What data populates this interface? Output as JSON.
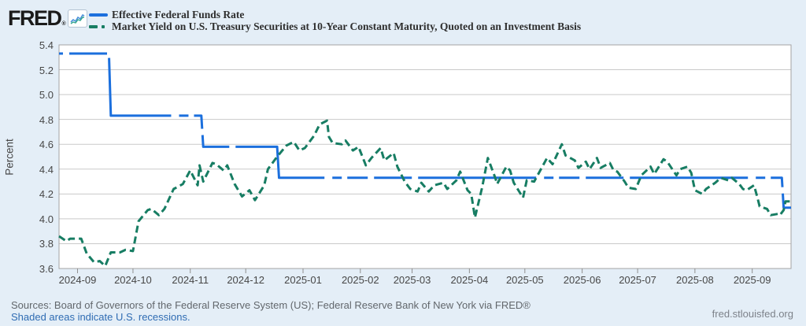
{
  "brand": {
    "logo_text": "FRED",
    "logo_reg": "®"
  },
  "legend": [
    {
      "label": "Effective Federal Funds Rate",
      "color": "#1b6fdd",
      "style": "solid"
    },
    {
      "label": "Market Yield on U.S. Treasury Securities at 10-Year Constant Maturity, Quoted on an Investment Basis",
      "color": "#177d63",
      "style": "dash-dot"
    }
  ],
  "footer": {
    "sources": "Sources: Board of Governors of the Federal Reserve System (US); Federal Reserve Bank of New York via FRED®",
    "recession_note": "Shaded areas indicate U.S. recessions.",
    "site": "fred.stlouisfed.org"
  },
  "chart_data": {
    "type": "line",
    "title": "",
    "xlabel": "",
    "ylabel": "Percent",
    "ylim": [
      3.6,
      5.4
    ],
    "yticks": [
      3.6,
      3.8,
      4.0,
      4.2,
      4.4,
      4.6,
      4.8,
      5.0,
      5.2,
      5.4
    ],
    "x_range": [
      "2024-08-22",
      "2025-09-22"
    ],
    "xticks": [
      "2024-09",
      "2024-10",
      "2024-11",
      "2024-12",
      "2025-01",
      "2025-02",
      "2025-03",
      "2025-04",
      "2025-05",
      "2025-06",
      "2025-07",
      "2025-08",
      "2025-09"
    ],
    "grid": "horizontal",
    "legend_position": "top",
    "series": [
      {
        "name": "Effective Federal Funds Rate",
        "color": "#1b6fdd",
        "style": "long-dash",
        "points": [
          [
            "2024-08-22",
            5.33
          ],
          [
            "2024-09-18",
            5.33
          ],
          [
            "2024-09-19",
            4.83
          ],
          [
            "2024-11-07",
            4.83
          ],
          [
            "2024-11-08",
            4.58
          ],
          [
            "2024-12-18",
            4.58
          ],
          [
            "2024-12-19",
            4.33
          ],
          [
            "2025-09-17",
            4.33
          ],
          [
            "2025-09-18",
            4.09
          ],
          [
            "2025-09-22",
            4.09
          ]
        ]
      },
      {
        "name": "Market Yield on U.S. Treasury Securities at 10-Year Constant Maturity, Quoted on an Investment Basis",
        "color": "#177d63",
        "style": "short-dash",
        "points": [
          [
            "2024-08-22",
            3.86
          ],
          [
            "2024-08-26",
            3.82
          ],
          [
            "2024-08-28",
            3.84
          ],
          [
            "2024-09-03",
            3.84
          ],
          [
            "2024-09-06",
            3.72
          ],
          [
            "2024-09-10",
            3.65
          ],
          [
            "2024-09-13",
            3.66
          ],
          [
            "2024-09-16",
            3.62
          ],
          [
            "2024-09-19",
            3.73
          ],
          [
            "2024-09-24",
            3.73
          ],
          [
            "2024-09-27",
            3.75
          ],
          [
            "2024-10-01",
            3.74
          ],
          [
            "2024-10-04",
            3.98
          ],
          [
            "2024-10-09",
            4.07
          ],
          [
            "2024-10-11",
            4.08
          ],
          [
            "2024-10-15",
            4.03
          ],
          [
            "2024-10-18",
            4.08
          ],
          [
            "2024-10-23",
            4.24
          ],
          [
            "2024-10-28",
            4.28
          ],
          [
            "2024-11-01",
            4.39
          ],
          [
            "2024-11-05",
            4.27
          ],
          [
            "2024-11-06",
            4.43
          ],
          [
            "2024-11-08",
            4.3
          ],
          [
            "2024-11-13",
            4.45
          ],
          [
            "2024-11-15",
            4.44
          ],
          [
            "2024-11-19",
            4.39
          ],
          [
            "2024-11-21",
            4.43
          ],
          [
            "2024-11-25",
            4.28
          ],
          [
            "2024-11-29",
            4.18
          ],
          [
            "2024-12-03",
            4.23
          ],
          [
            "2024-12-06",
            4.15
          ],
          [
            "2024-12-11",
            4.27
          ],
          [
            "2024-12-13",
            4.4
          ],
          [
            "2024-12-18",
            4.5
          ],
          [
            "2024-12-23",
            4.59
          ],
          [
            "2024-12-27",
            4.62
          ],
          [
            "2024-12-30",
            4.55
          ],
          [
            "2025-01-02",
            4.57
          ],
          [
            "2025-01-07",
            4.67
          ],
          [
            "2025-01-10",
            4.76
          ],
          [
            "2025-01-14",
            4.79
          ],
          [
            "2025-01-15",
            4.66
          ],
          [
            "2025-01-17",
            4.61
          ],
          [
            "2025-01-22",
            4.6
          ],
          [
            "2025-01-24",
            4.63
          ],
          [
            "2025-01-28",
            4.55
          ],
          [
            "2025-01-31",
            4.58
          ],
          [
            "2025-02-04",
            4.43
          ],
          [
            "2025-02-07",
            4.49
          ],
          [
            "2025-02-12",
            4.57
          ],
          [
            "2025-02-14",
            4.47
          ],
          [
            "2025-02-19",
            4.53
          ],
          [
            "2025-02-21",
            4.42
          ],
          [
            "2025-02-25",
            4.3
          ],
          [
            "2025-02-28",
            4.24
          ],
          [
            "2025-03-04",
            4.22
          ],
          [
            "2025-03-06",
            4.29
          ],
          [
            "2025-03-10",
            4.22
          ],
          [
            "2025-03-13",
            4.27
          ],
          [
            "2025-03-18",
            4.29
          ],
          [
            "2025-03-20",
            4.24
          ],
          [
            "2025-03-25",
            4.31
          ],
          [
            "2025-03-27",
            4.38
          ],
          [
            "2025-03-31",
            4.23
          ],
          [
            "2025-04-02",
            4.2
          ],
          [
            "2025-04-04",
            4.01
          ],
          [
            "2025-04-08",
            4.26
          ],
          [
            "2025-04-09",
            4.34
          ],
          [
            "2025-04-11",
            4.49
          ],
          [
            "2025-04-15",
            4.33
          ],
          [
            "2025-04-16",
            4.28
          ],
          [
            "2025-04-21",
            4.42
          ],
          [
            "2025-04-23",
            4.39
          ],
          [
            "2025-04-25",
            4.29
          ],
          [
            "2025-04-30",
            4.17
          ],
          [
            "2025-05-02",
            4.31
          ],
          [
            "2025-05-06",
            4.3
          ],
          [
            "2025-05-09",
            4.38
          ],
          [
            "2025-05-13",
            4.49
          ],
          [
            "2025-05-16",
            4.44
          ],
          [
            "2025-05-21",
            4.6
          ],
          [
            "2025-05-23",
            4.51
          ],
          [
            "2025-05-28",
            4.47
          ],
          [
            "2025-05-30",
            4.41
          ],
          [
            "2025-06-03",
            4.46
          ],
          [
            "2025-06-05",
            4.4
          ],
          [
            "2025-06-09",
            4.49
          ],
          [
            "2025-06-11",
            4.41
          ],
          [
            "2025-06-16",
            4.45
          ],
          [
            "2025-06-18",
            4.39
          ],
          [
            "2025-06-20",
            4.38
          ],
          [
            "2025-06-24",
            4.3
          ],
          [
            "2025-06-26",
            4.25
          ],
          [
            "2025-06-30",
            4.24
          ],
          [
            "2025-07-03",
            4.35
          ],
          [
            "2025-07-08",
            4.42
          ],
          [
            "2025-07-10",
            4.36
          ],
          [
            "2025-07-15",
            4.48
          ],
          [
            "2025-07-17",
            4.46
          ],
          [
            "2025-07-22",
            4.35
          ],
          [
            "2025-07-24",
            4.4
          ],
          [
            "2025-07-28",
            4.42
          ],
          [
            "2025-07-30",
            4.37
          ],
          [
            "2025-08-01",
            4.23
          ],
          [
            "2025-08-05",
            4.2
          ],
          [
            "2025-08-07",
            4.24
          ],
          [
            "2025-08-12",
            4.29
          ],
          [
            "2025-08-15",
            4.33
          ],
          [
            "2025-08-19",
            4.31
          ],
          [
            "2025-08-21",
            4.33
          ],
          [
            "2025-08-25",
            4.28
          ],
          [
            "2025-08-27",
            4.24
          ],
          [
            "2025-08-29",
            4.23
          ],
          [
            "2025-09-02",
            4.27
          ],
          [
            "2025-09-04",
            4.16
          ],
          [
            "2025-09-05",
            4.1
          ],
          [
            "2025-09-09",
            4.08
          ],
          [
            "2025-09-11",
            4.03
          ],
          [
            "2025-09-15",
            4.04
          ],
          [
            "2025-09-16",
            4.03
          ],
          [
            "2025-09-18",
            4.07
          ],
          [
            "2025-09-19",
            4.14
          ],
          [
            "2025-09-22",
            4.14
          ]
        ]
      }
    ]
  }
}
